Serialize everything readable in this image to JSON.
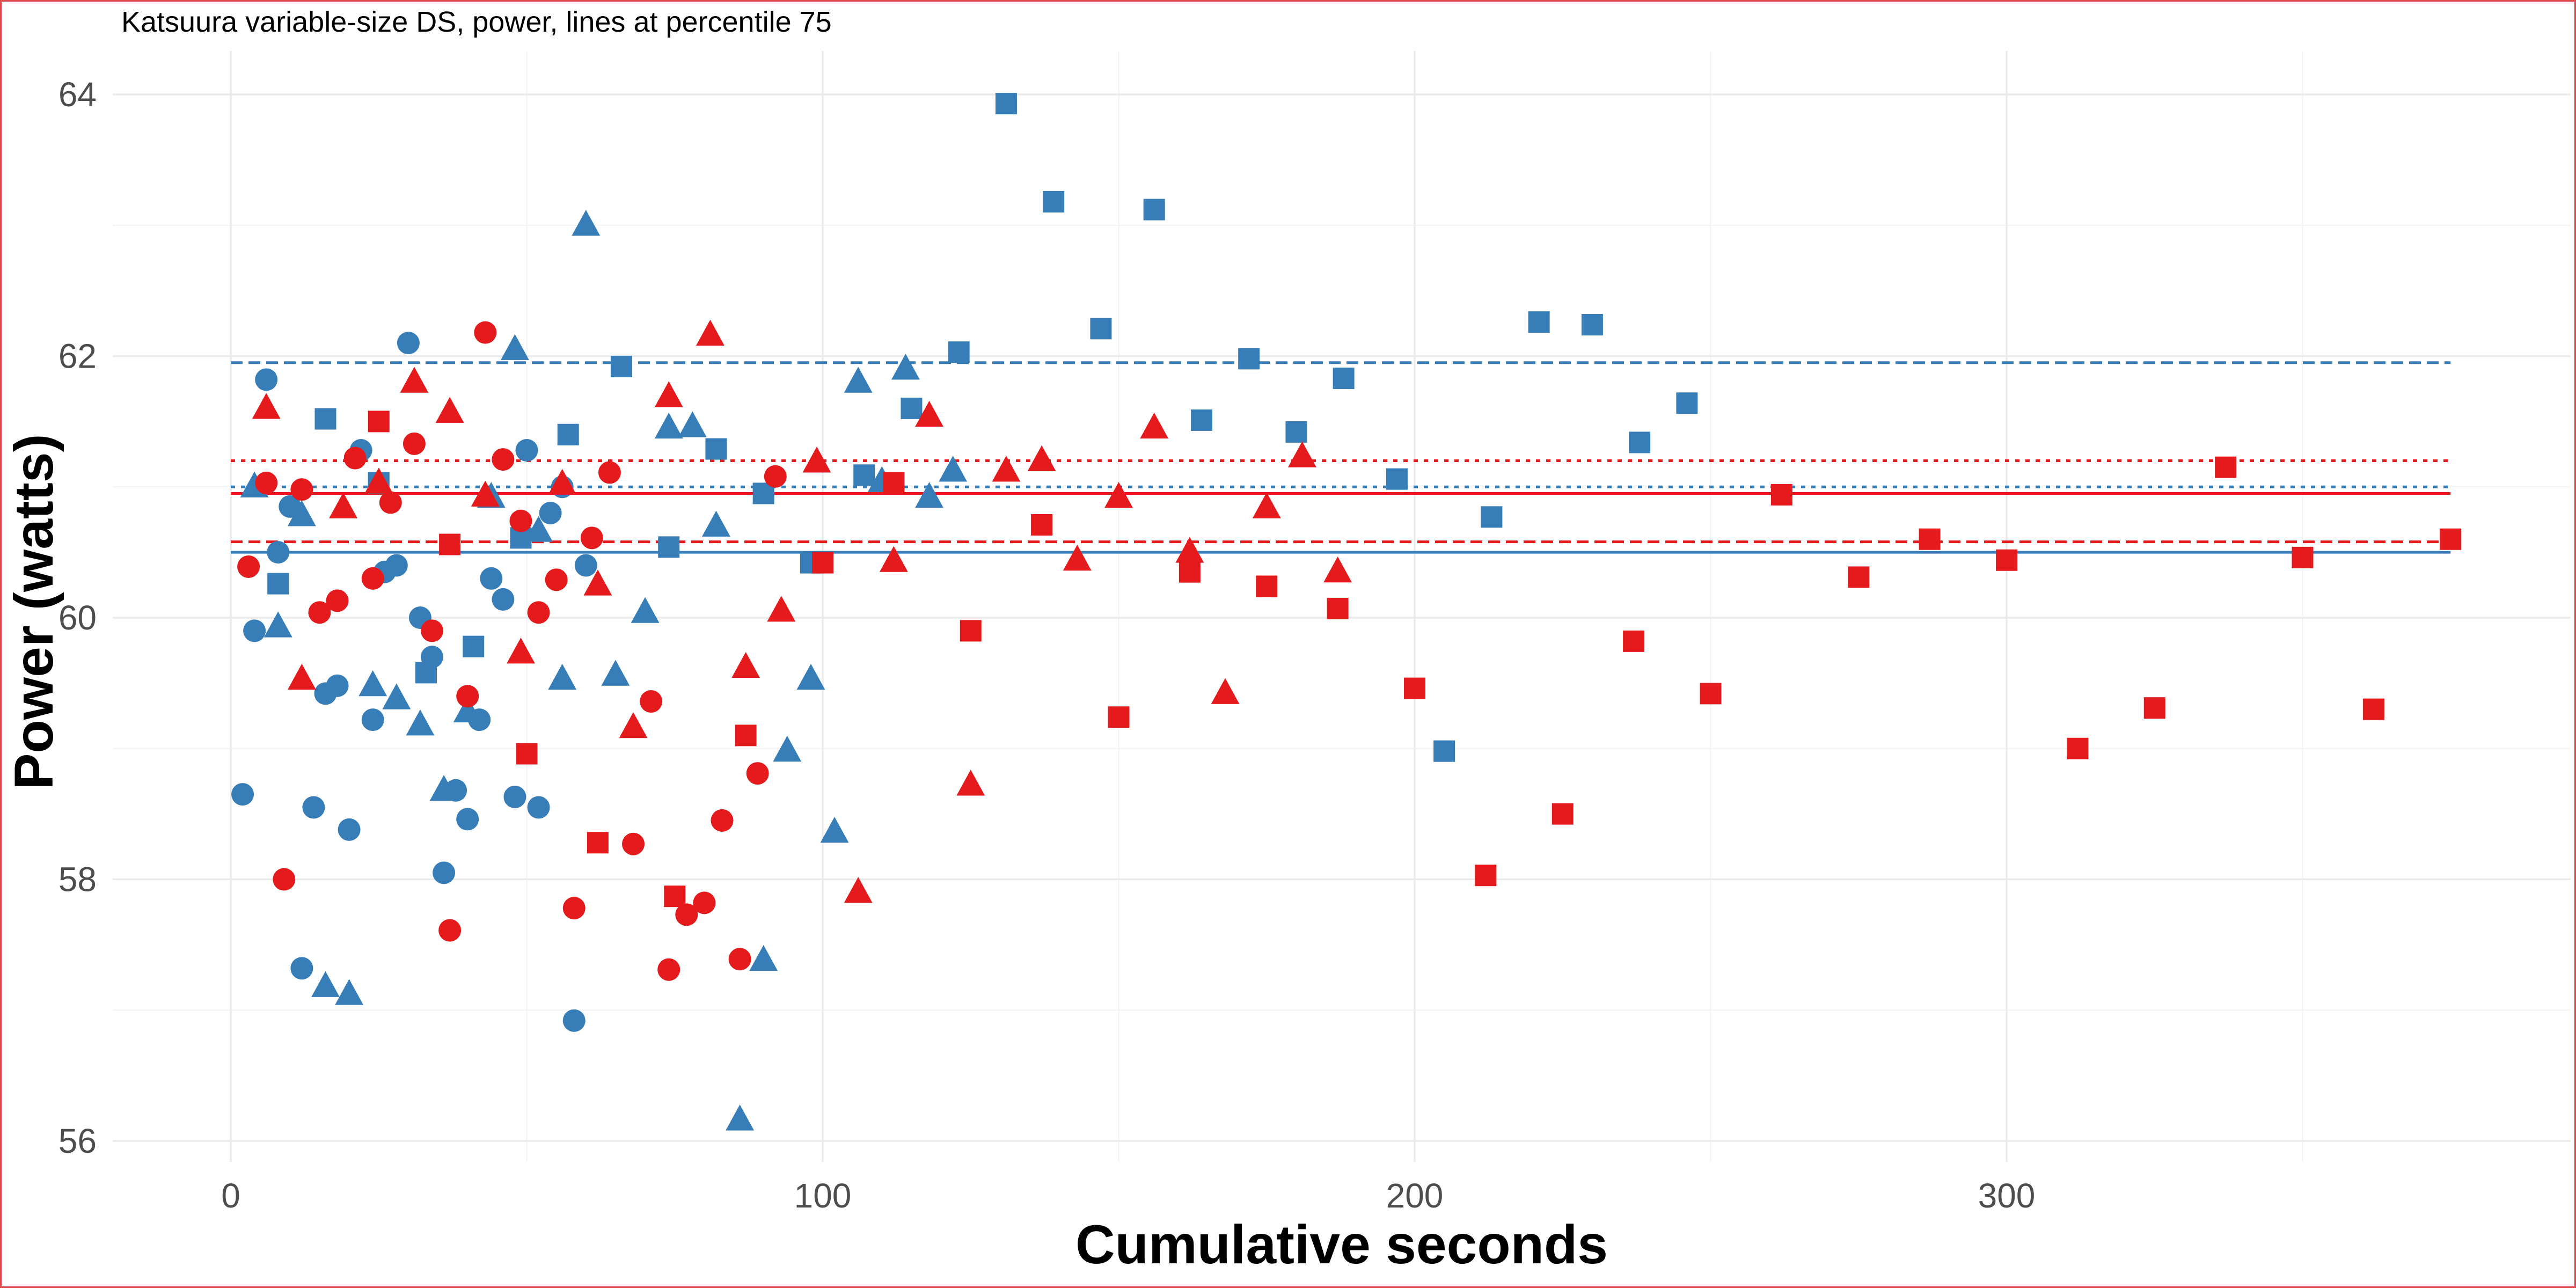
{
  "colors": {
    "red": "#e41a1c",
    "blue": "#377eb8",
    "grid": "#ebebeb",
    "tick_text": "#4d4d4d"
  },
  "chart_data": {
    "type": "scatter",
    "title": "Katsuura variable-size DS, power, lines at percentile 75",
    "xlabel": "Cumulative seconds",
    "ylabel": "Power (watts)",
    "xlim": [
      -6,
      395
    ],
    "ylim": [
      55.8,
      64.5
    ],
    "x_ticks": [
      0,
      100,
      200,
      300
    ],
    "x_tick_labels": [
      "0",
      "100",
      "200",
      "300"
    ],
    "y_ticks": [
      56,
      58,
      60,
      62,
      64
    ],
    "y_tick_labels": [
      "56",
      "58",
      "60",
      "62",
      "64"
    ],
    "grid": true,
    "legend": "none",
    "reference_lines": [
      {
        "color": "blue",
        "style": "dashed",
        "y": 61.95
      },
      {
        "color": "red",
        "style": "dotted",
        "y": 61.2
      },
      {
        "color": "blue",
        "style": "dotted",
        "y": 61.0
      },
      {
        "color": "red",
        "style": "solid",
        "y": 60.95
      },
      {
        "color": "red",
        "style": "dashed",
        "y": 60.58
      },
      {
        "color": "blue",
        "style": "solid",
        "y": 60.5
      }
    ],
    "series": [
      {
        "color": "blue",
        "shape": "circle",
        "points": [
          [
            2,
            58.65
          ],
          [
            4,
            59.9
          ],
          [
            6,
            61.82
          ],
          [
            8,
            60.5
          ],
          [
            10,
            60.85
          ],
          [
            12,
            57.32
          ],
          [
            14,
            58.55
          ],
          [
            16,
            59.42
          ],
          [
            18,
            59.48
          ],
          [
            20,
            58.38
          ],
          [
            22,
            61.28
          ],
          [
            24,
            59.22
          ],
          [
            26,
            60.35
          ],
          [
            28,
            60.4
          ],
          [
            30,
            62.1
          ],
          [
            32,
            60.0
          ],
          [
            34,
            59.7
          ],
          [
            36,
            58.05
          ],
          [
            38,
            58.68
          ],
          [
            40,
            58.46
          ],
          [
            42,
            59.22
          ],
          [
            44,
            60.3
          ],
          [
            46,
            60.14
          ],
          [
            48,
            58.63
          ],
          [
            50,
            61.28
          ],
          [
            52,
            58.55
          ],
          [
            54,
            60.8
          ],
          [
            56,
            61.0
          ],
          [
            58,
            56.92
          ],
          [
            60,
            60.4
          ]
        ]
      },
      {
        "color": "blue",
        "shape": "triangle",
        "points": [
          [
            4,
            61.0
          ],
          [
            8,
            59.93
          ],
          [
            12,
            60.78
          ],
          [
            16,
            57.18
          ],
          [
            20,
            57.12
          ],
          [
            24,
            59.48
          ],
          [
            28,
            59.38
          ],
          [
            32,
            59.18
          ],
          [
            36,
            58.68
          ],
          [
            40,
            59.28
          ],
          [
            44,
            60.92
          ],
          [
            48,
            62.05
          ],
          [
            52,
            60.66
          ],
          [
            56,
            59.53
          ],
          [
            60,
            63.0
          ],
          [
            65,
            59.56
          ],
          [
            70,
            60.04
          ],
          [
            74,
            61.45
          ],
          [
            78,
            61.46
          ],
          [
            82,
            60.7
          ],
          [
            86,
            56.16
          ],
          [
            90,
            57.38
          ],
          [
            94,
            58.98
          ],
          [
            98,
            59.53
          ],
          [
            102,
            58.36
          ],
          [
            106,
            61.8
          ],
          [
            110,
            61.04
          ],
          [
            114,
            61.9
          ],
          [
            118,
            60.92
          ],
          [
            122,
            61.12
          ]
        ]
      },
      {
        "color": "blue",
        "shape": "square",
        "points": [
          [
            8,
            60.26
          ],
          [
            16,
            61.52
          ],
          [
            25,
            61.03
          ],
          [
            33,
            59.58
          ],
          [
            41,
            59.78
          ],
          [
            49,
            60.61
          ],
          [
            57,
            61.4
          ],
          [
            66,
            61.92
          ],
          [
            74,
            60.54
          ],
          [
            82,
            61.29
          ],
          [
            90,
            60.95
          ],
          [
            98,
            60.42
          ],
          [
            107,
            61.09
          ],
          [
            115,
            61.6
          ],
          [
            123,
            62.03
          ],
          [
            131,
            63.93
          ],
          [
            139,
            63.18
          ],
          [
            147,
            62.21
          ],
          [
            156,
            63.12
          ],
          [
            164,
            61.51
          ],
          [
            172,
            61.98
          ],
          [
            180,
            61.42
          ],
          [
            188,
            61.83
          ],
          [
            197,
            61.06
          ],
          [
            205,
            58.98
          ],
          [
            213,
            60.77
          ],
          [
            221,
            62.26
          ],
          [
            230,
            62.24
          ],
          [
            238,
            61.34
          ],
          [
            246,
            61.64
          ]
        ]
      },
      {
        "color": "red",
        "shape": "circle",
        "points": [
          [
            3,
            60.39
          ],
          [
            6,
            61.03
          ],
          [
            9,
            58.0
          ],
          [
            12,
            60.98
          ],
          [
            15,
            60.04
          ],
          [
            18,
            60.13
          ],
          [
            21,
            61.22
          ],
          [
            24,
            60.3
          ],
          [
            27,
            60.88
          ],
          [
            31,
            61.33
          ],
          [
            34,
            59.9
          ],
          [
            37,
            57.61
          ],
          [
            40,
            59.4
          ],
          [
            43,
            62.18
          ],
          [
            46,
            61.21
          ],
          [
            49,
            60.74
          ],
          [
            52,
            60.04
          ],
          [
            55,
            60.29
          ],
          [
            58,
            57.78
          ],
          [
            61,
            60.61
          ],
          [
            64,
            61.11
          ],
          [
            68,
            58.27
          ],
          [
            71,
            59.36
          ],
          [
            74,
            57.31
          ],
          [
            77,
            57.73
          ],
          [
            80,
            57.82
          ],
          [
            83,
            58.45
          ],
          [
            86,
            57.39
          ],
          [
            89,
            58.81
          ],
          [
            92,
            61.08
          ]
        ]
      },
      {
        "color": "red",
        "shape": "triangle",
        "points": [
          [
            6,
            61.6
          ],
          [
            12,
            59.53
          ],
          [
            19,
            60.84
          ],
          [
            25,
            61.03
          ],
          [
            31,
            61.8
          ],
          [
            37,
            61.57
          ],
          [
            43,
            60.93
          ],
          [
            49,
            59.73
          ],
          [
            56,
            61.02
          ],
          [
            62,
            60.25
          ],
          [
            68,
            59.16
          ],
          [
            74,
            61.69
          ],
          [
            81,
            62.16
          ],
          [
            87,
            59.62
          ],
          [
            93,
            60.05
          ],
          [
            99,
            61.19
          ],
          [
            106,
            57.9
          ],
          [
            112,
            60.43
          ],
          [
            118,
            61.54
          ],
          [
            125,
            58.72
          ],
          [
            131,
            61.12
          ],
          [
            137,
            61.2
          ],
          [
            143,
            60.44
          ],
          [
            150,
            60.92
          ],
          [
            156,
            61.45
          ],
          [
            162,
            60.5
          ],
          [
            168,
            59.42
          ],
          [
            175,
            60.84
          ],
          [
            181,
            61.23
          ],
          [
            187,
            60.35
          ]
        ]
      },
      {
        "color": "red",
        "shape": "square",
        "points": [
          [
            25,
            61.5
          ],
          [
            37,
            60.56
          ],
          [
            50,
            58.96
          ],
          [
            62,
            58.28
          ],
          [
            75,
            57.87
          ],
          [
            87,
            59.1
          ],
          [
            100,
            60.42
          ],
          [
            112,
            61.03
          ],
          [
            125,
            59.9
          ],
          [
            137,
            60.71
          ],
          [
            150,
            59.24
          ],
          [
            162,
            60.35
          ],
          [
            175,
            60.24
          ],
          [
            187,
            60.07
          ],
          [
            200,
            59.46
          ],
          [
            212,
            58.03
          ],
          [
            225,
            58.5
          ],
          [
            237,
            59.82
          ],
          [
            250,
            59.42
          ],
          [
            262,
            60.94
          ],
          [
            275,
            60.31
          ],
          [
            287,
            60.6
          ],
          [
            300,
            60.44
          ],
          [
            312,
            59.0
          ],
          [
            325,
            59.31
          ],
          [
            337,
            61.15
          ],
          [
            350,
            60.46
          ],
          [
            362,
            59.3
          ],
          [
            375,
            60.6
          ]
        ]
      }
    ]
  }
}
